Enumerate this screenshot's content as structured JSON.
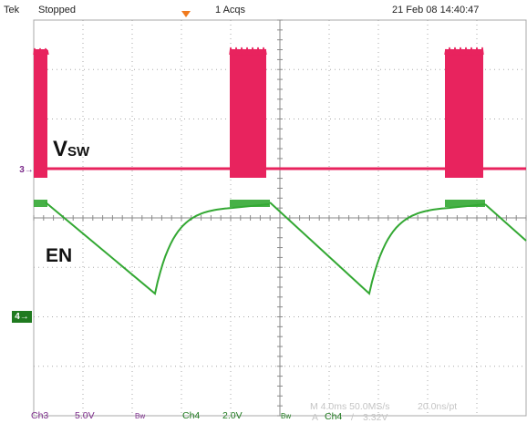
{
  "header": {
    "brand": "Tek",
    "run_state": "Stopped",
    "acquisitions": "1 Acqs",
    "timestamp": "21 Feb 08 14:40:47"
  },
  "channels": {
    "ch3": {
      "trace_label": "V",
      "trace_subscript": "SW",
      "marker": "3",
      "color": "#e8235e"
    },
    "ch4": {
      "trace_label": "EN",
      "marker": "4",
      "color": "#33a833"
    }
  },
  "readouts": {
    "ch3_name": "Ch3",
    "ch3_scale": "5.0V",
    "ch3_bw": "Bw",
    "ch4_name": "Ch4",
    "ch4_scale": "2.0V",
    "ch4_bw": "Bw",
    "timebase": "M 4.0ms 50.0MS/s",
    "resolution": "20.0ns/pt",
    "trigger_prefix": "A",
    "trigger_source": "Ch4",
    "trigger_slope": "/",
    "trigger_level": "3.32V"
  },
  "colors": {
    "grid": "#a8a8a8",
    "grid_center": "#8a8a8a",
    "ch3_marker": "#7b2a8a",
    "ch4_marker": "#1f7a1f"
  }
}
